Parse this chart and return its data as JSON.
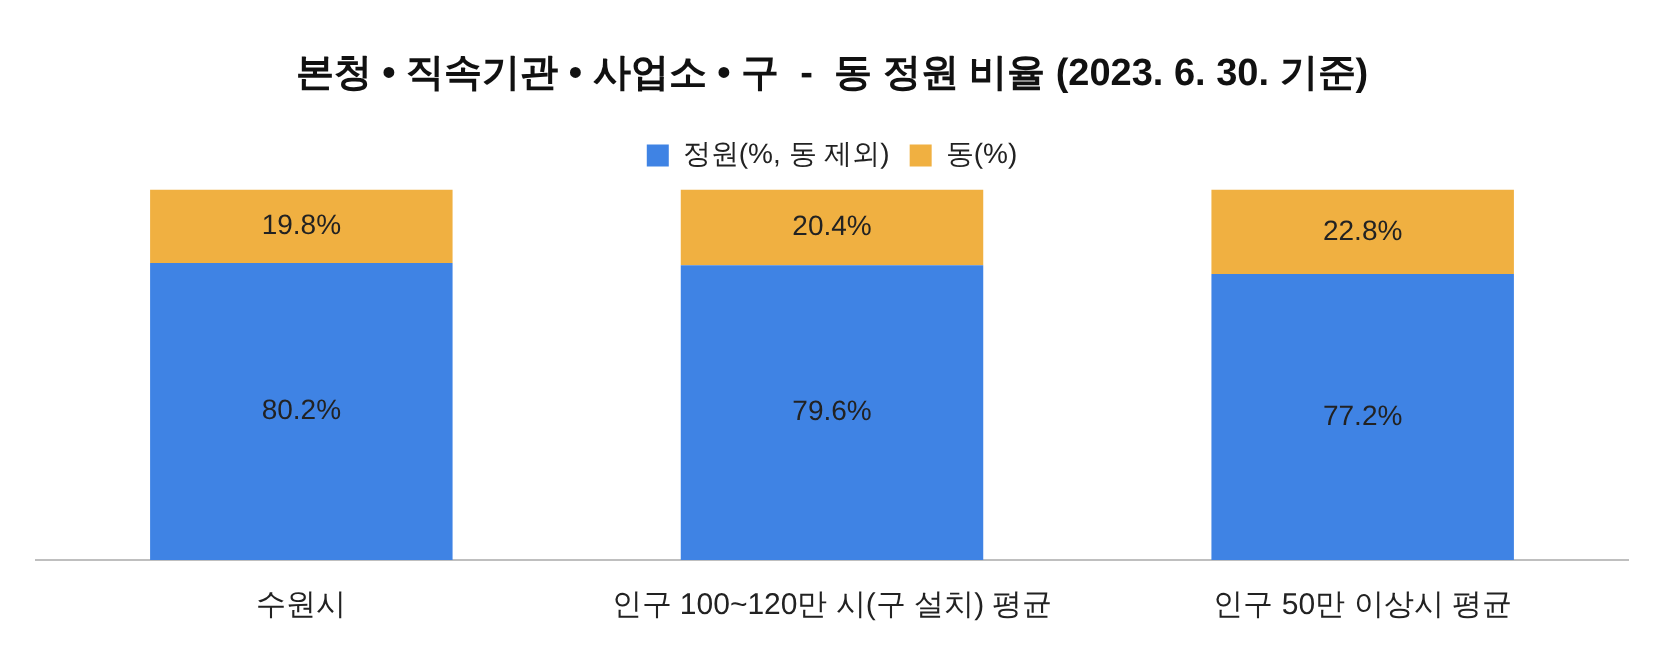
{
  "chart_data": {
    "type": "bar",
    "title": "본청 • 직속기관 • 사업소 • 구  -  동 정원 비율 (2023. 6. 30. 기준)",
    "categories": [
      "수원시",
      "인구 100~120만 시(구 설치) 평균",
      "인구 50만 이상시 평균"
    ],
    "stacked": true,
    "legend": "top",
    "grid": false,
    "series": [
      {
        "name": "정원(%, 동 제외)",
        "color": "#3f83e4",
        "values": [
          80.2,
          79.6,
          77.2
        ],
        "value_labels": [
          "80.2%",
          "79.6%",
          "77.2%"
        ]
      },
      {
        "name": "동(%)",
        "color": "#f0b041",
        "values": [
          19.8,
          20.4,
          22.8
        ],
        "value_labels": [
          "19.8%",
          "20.4%",
          "22.8%"
        ]
      }
    ]
  }
}
